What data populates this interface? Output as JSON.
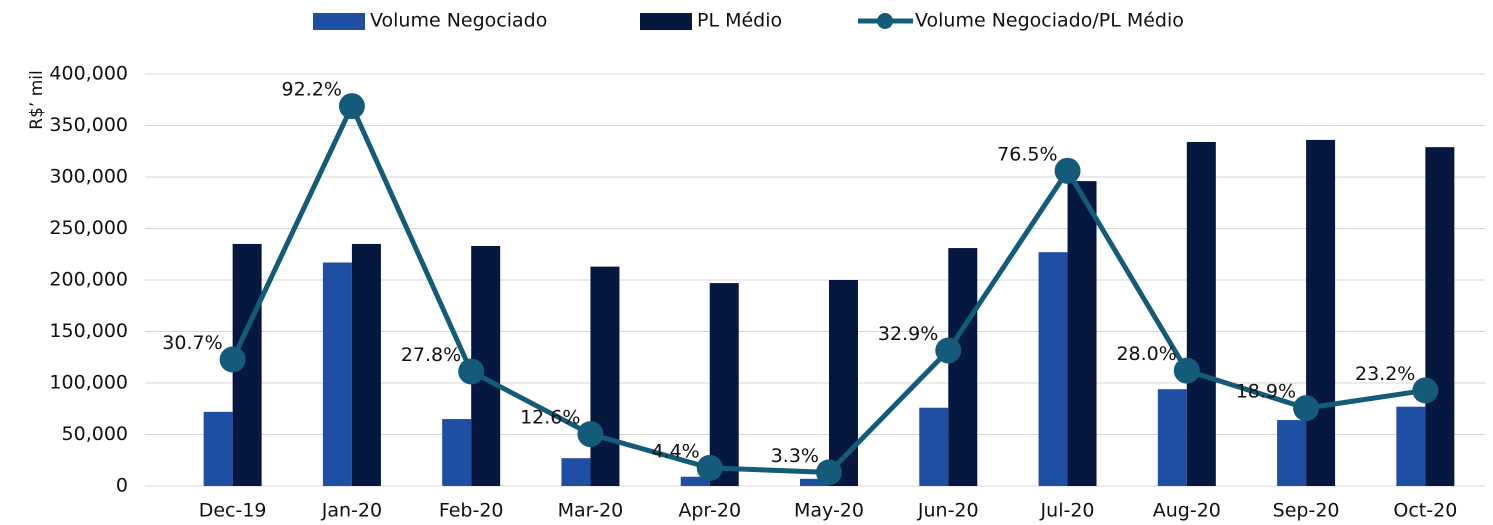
{
  "chart_data": {
    "type": "bar",
    "y_label": "R$’ mil",
    "categories": [
      "Dec-19",
      "Jan-20",
      "Feb-20",
      "Mar-20",
      "Apr-20",
      "May-20",
      "Jun-20",
      "Jul-20",
      "Aug-20",
      "Sep-20",
      "Oct-20"
    ],
    "series": [
      {
        "name": "Volume Negociado",
        "color": "#1f4fa3",
        "values": [
          72000,
          217000,
          65000,
          27000,
          9000,
          7000,
          76000,
          227000,
          94000,
          64000,
          77000
        ]
      },
      {
        "name": "PL Médio",
        "color": "#061840",
        "values": [
          235000,
          235000,
          233000,
          213000,
          197000,
          200000,
          231000,
          296000,
          334000,
          336000,
          329000
        ]
      },
      {
        "name": "Volume Negociado/PL Médio",
        "color": "#135b78",
        "type": "line",
        "axis": "y2",
        "values": [
          30.7,
          92.2,
          27.8,
          12.6,
          4.4,
          3.3,
          32.9,
          76.5,
          28.0,
          18.9,
          23.2
        ],
        "value_labels": [
          "30.7%",
          "92.2%",
          "27.8%",
          "12.6%",
          "4.4%",
          "3.3%",
          "32.9%",
          "76.5%",
          "28.0%",
          "18.9%",
          "23.2%"
        ]
      }
    ],
    "ylim": [
      0,
      400000
    ],
    "yticks": [
      0,
      {
        "value": 50000,
        "label": "50,000"
      },
      {
        "value": 100000,
        "label": "100,000"
      },
      {
        "value": 150000,
        "label": "150,000"
      },
      {
        "value": 200000,
        "label": "200,000"
      },
      {
        "value": 250000,
        "label": "250,000"
      },
      {
        "value": 300000,
        "label": "300,000"
      },
      {
        "value": 350000,
        "label": "350,000"
      },
      {
        "value": 400000,
        "label": "400,000"
      }
    ],
    "y2lim": [
      0,
      100
    ],
    "grid": true,
    "legend": "top"
  }
}
